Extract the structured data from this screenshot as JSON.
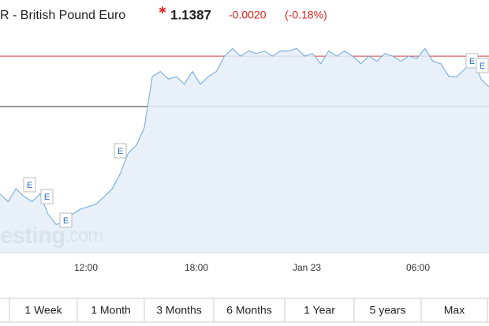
{
  "header": {
    "title": "R - British Pound Euro",
    "price": 1.1387,
    "change": "-0.0020",
    "change_percent": "(-0.18%)"
  },
  "chart_data": {
    "type": "line",
    "values": [
      1.1333,
      1.133,
      1.1335,
      1.1332,
      1.133,
      1.1333,
      1.1325,
      1.1321,
      1.1322,
      1.1325,
      1.1327,
      1.1328,
      1.1329,
      1.1332,
      1.1335,
      1.1341,
      1.1349,
      1.1352,
      1.1359,
      1.1379,
      1.1381,
      1.1378,
      1.1379,
      1.1376,
      1.1381,
      1.1376,
      1.1379,
      1.1381,
      1.1387,
      1.139,
      1.1387,
      1.1389,
      1.1388,
      1.1389,
      1.1387,
      1.1389,
      1.1389,
      1.139,
      1.1387,
      1.1388,
      1.1384,
      1.1389,
      1.1387,
      1.1389,
      1.1387,
      1.1384,
      1.1387,
      1.1385,
      1.1388,
      1.1387,
      1.1385,
      1.1387,
      1.1386,
      1.139,
      1.1385,
      1.1384,
      1.1379,
      1.1379,
      1.1382,
      1.1387,
      1.1378,
      1.1375
    ],
    "color": "#7fb2e0",
    "ylim": [
      1.131,
      1.1409
    ],
    "xtick_labels": [
      "12:00",
      "18:00",
      "Jan 23",
      "06:00"
    ],
    "events": [
      "E",
      "E",
      "E",
      "E",
      "E",
      "E"
    ]
  },
  "watermark": {
    "brand": "esting",
    "suffix": ".com"
  },
  "range_buttons": [
    "1 Week",
    "1 Month",
    "3 Months",
    "6 Months",
    "1 Year",
    "5 years",
    "Max"
  ]
}
